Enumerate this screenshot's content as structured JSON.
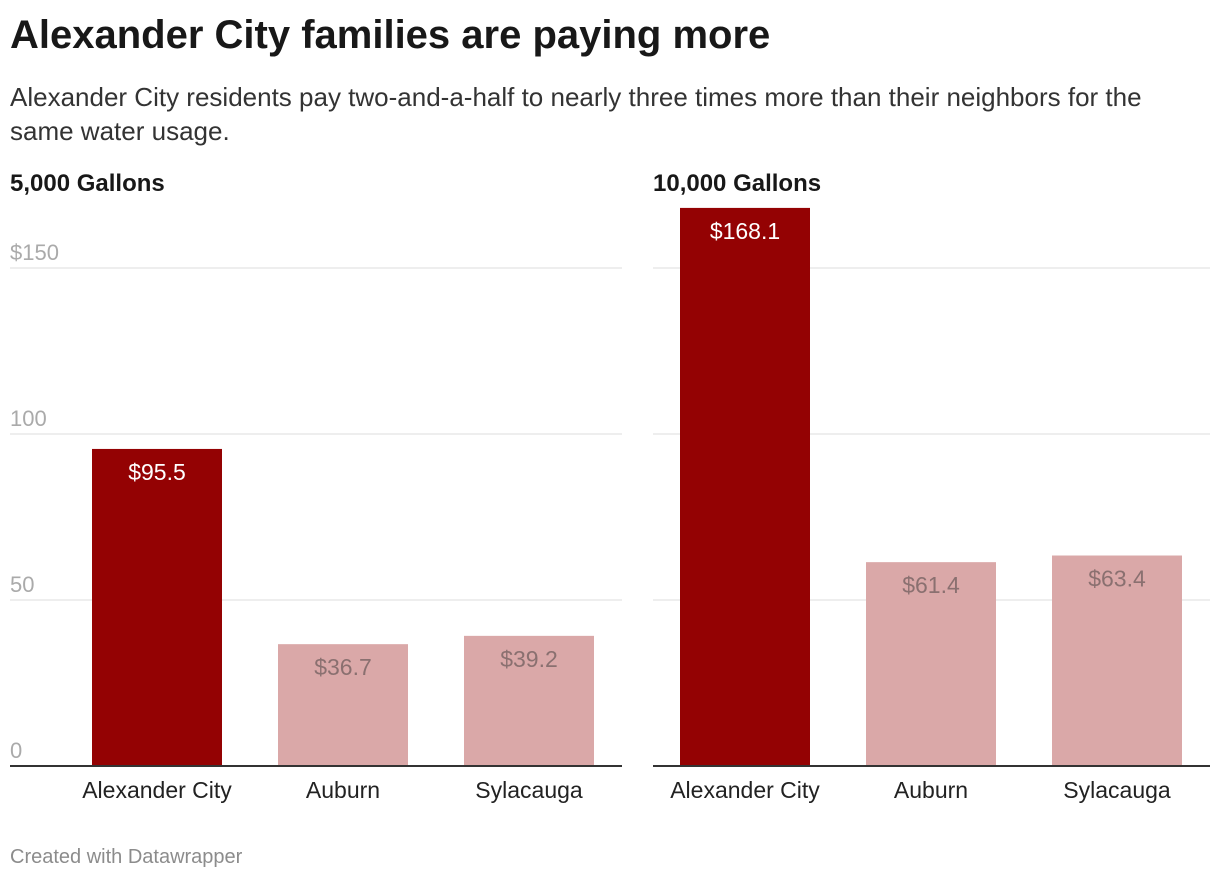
{
  "header": {
    "title": "Alexander City families are paying more",
    "subtitle": "Alexander City residents pay two-and-a-half to nearly three times more than their neighbors for the same water usage."
  },
  "footer": {
    "credit": "Created with Datawrapper"
  },
  "colors": {
    "highlight": "#940203",
    "muted": "#daa8a8",
    "label_light": "#ffffff",
    "label_dark": "#8a7070",
    "grid": "#dddddd",
    "axis_text": "#aaaaaa",
    "baseline": "#333333"
  },
  "chart_data": [
    {
      "type": "bar",
      "title": "5,000 Gallons",
      "categories": [
        "Alexander City",
        "Auburn",
        "Sylacauga"
      ],
      "values": [
        95.5,
        36.7,
        39.2
      ],
      "value_labels": [
        "$95.5",
        "$36.7",
        "$39.2"
      ],
      "highlight": [
        true,
        false,
        false
      ],
      "yticks": [
        0,
        50,
        100,
        150
      ],
      "ytick_labels": [
        "0",
        "50",
        "100",
        "$150"
      ],
      "ylim": [
        0,
        150
      ],
      "grid": true
    },
    {
      "type": "bar",
      "title": "10,000 Gallons",
      "categories": [
        "Alexander City",
        "Auburn",
        "Sylacauga"
      ],
      "values": [
        168.1,
        61.4,
        63.4
      ],
      "value_labels": [
        "$168.1",
        "$61.4",
        "$63.4"
      ],
      "highlight": [
        true,
        false,
        false
      ],
      "yticks": [
        0,
        50,
        100,
        150
      ],
      "ytick_labels": [
        "",
        "",
        "",
        ""
      ],
      "ylim": [
        0,
        150
      ],
      "grid": true
    }
  ]
}
